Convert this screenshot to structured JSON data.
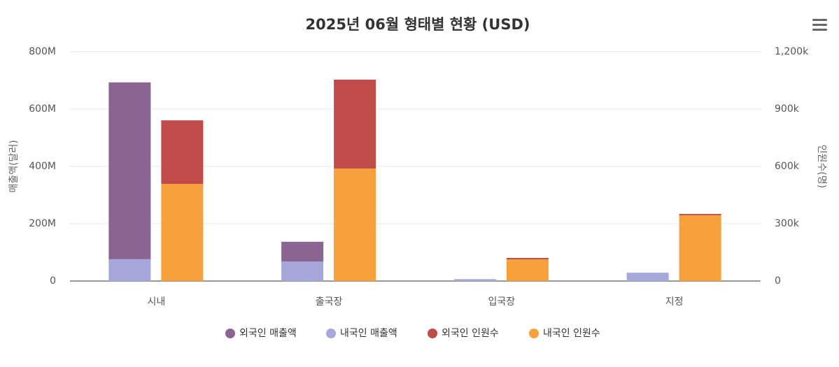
{
  "chart_data": {
    "type": "stacked_bar",
    "title": "2025년 06월 형태별 현황 (USD)",
    "y_label": "매출액(달러)",
    "y2_label": "인원수(명)",
    "categories": [
      "시내",
      "출국장",
      "입국장",
      "지정"
    ],
    "ylim": [
      0,
      800000000
    ],
    "yticks": [
      {
        "value": 0,
        "label": "0"
      },
      {
        "value": 200000000,
        "label": "200M"
      },
      {
        "value": 400000000,
        "label": "400M"
      },
      {
        "value": 600000000,
        "label": "600M"
      },
      {
        "value": 800000000,
        "label": "800M"
      }
    ],
    "y2lim": [
      0,
      1200000
    ],
    "y2ticks": [
      {
        "value": 0,
        "label": "0"
      },
      {
        "value": 300000,
        "label": "300k"
      },
      {
        "value": 600000,
        "label": "600k"
      },
      {
        "value": 900000,
        "label": "900k"
      },
      {
        "value": 1200000,
        "label": "1,200k"
      }
    ],
    "grid": true,
    "series": [
      {
        "name": "외국인 매출액",
        "color": "#8b6592",
        "values": [
          617000000,
          69000000,
          1000000,
          0
        ],
        "axis": "y"
      },
      {
        "name": "내국인 매출액",
        "color": "#a5a8d8",
        "values": [
          76000000,
          68000000,
          5000000,
          29000000
        ],
        "axis": "y"
      },
      {
        "name": "외국인 인원수",
        "color": "#c14b4b",
        "values": [
          333000,
          465000,
          8000,
          7000
        ],
        "axis": "y2"
      },
      {
        "name": "내국인 인원수",
        "color": "#f7a13c",
        "values": [
          508000,
          589000,
          113000,
          344000
        ],
        "axis": "y2"
      }
    ]
  }
}
